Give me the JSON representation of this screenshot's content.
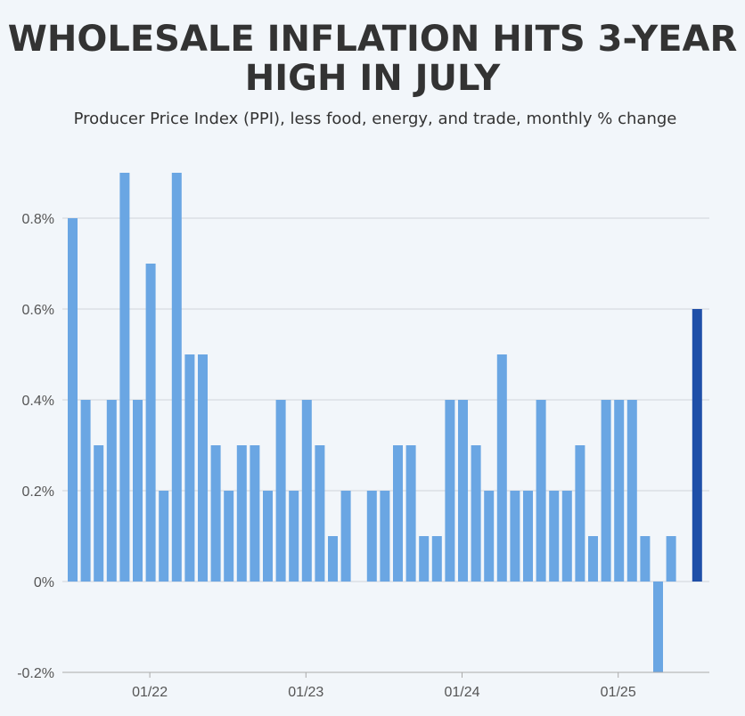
{
  "chart_data": {
    "type": "bar",
    "title": "WHOLESALE INFLATION HITS 3-YEAR HIGH IN JULY",
    "subtitle": "Producer Price Index (PPI), less food, energy, and trade, monthly % change",
    "xlabel": "",
    "ylabel": "",
    "ylim": [
      -0.2,
      0.9
    ],
    "yticks": [
      -0.2,
      0,
      0.2,
      0.4,
      0.6,
      0.8
    ],
    "ytick_labels": [
      "-0.2%",
      "0%",
      "0.2%",
      "0.4%",
      "0.6%",
      "0.8%"
    ],
    "xtick_labels": [
      {
        "label": "01/22",
        "index": 6
      },
      {
        "label": "01/23",
        "index": 18
      },
      {
        "label": "01/24",
        "index": 30
      },
      {
        "label": "01/25",
        "index": 42
      }
    ],
    "categories": [
      "2021-07",
      "2021-08",
      "2021-09",
      "2021-10",
      "2021-11",
      "2021-12",
      "2022-01",
      "2022-02",
      "2022-03",
      "2022-04",
      "2022-05",
      "2022-06",
      "2022-07",
      "2022-08",
      "2022-09",
      "2022-10",
      "2022-11",
      "2022-12",
      "2023-01",
      "2023-02",
      "2023-03",
      "2023-04",
      "2023-05",
      "2023-06",
      "2023-07",
      "2023-08",
      "2023-09",
      "2023-10",
      "2023-11",
      "2023-12",
      "2024-01",
      "2024-02",
      "2024-03",
      "2024-04",
      "2024-05",
      "2024-06",
      "2024-07",
      "2024-08",
      "2024-09",
      "2024-10",
      "2024-11",
      "2024-12",
      "2025-01",
      "2025-02",
      "2025-03",
      "2025-04",
      "2025-05",
      "2025-06",
      "2025-07"
    ],
    "values": [
      0.8,
      0.4,
      0.3,
      0.4,
      0.9,
      0.4,
      0.7,
      0.2,
      0.9,
      0.5,
      0.5,
      0.3,
      0.2,
      0.3,
      0.3,
      0.2,
      0.4,
      0.2,
      0.4,
      0.3,
      0.1,
      0.2,
      0.0,
      0.2,
      0.2,
      0.3,
      0.3,
      0.1,
      0.1,
      0.4,
      0.4,
      0.3,
      0.2,
      0.5,
      0.2,
      0.2,
      0.4,
      0.2,
      0.2,
      0.3,
      0.1,
      0.4,
      0.4,
      0.4,
      0.1,
      -0.2,
      0.1,
      0.0,
      0.6
    ],
    "highlight_index": 48,
    "colors": {
      "bar": "#6aa6e3",
      "highlight": "#1f4fa8",
      "grid": "#d0d4d9",
      "axis": "#aaaaaa",
      "background": "#f2f6fa"
    },
    "grid": true,
    "legend": "none"
  }
}
